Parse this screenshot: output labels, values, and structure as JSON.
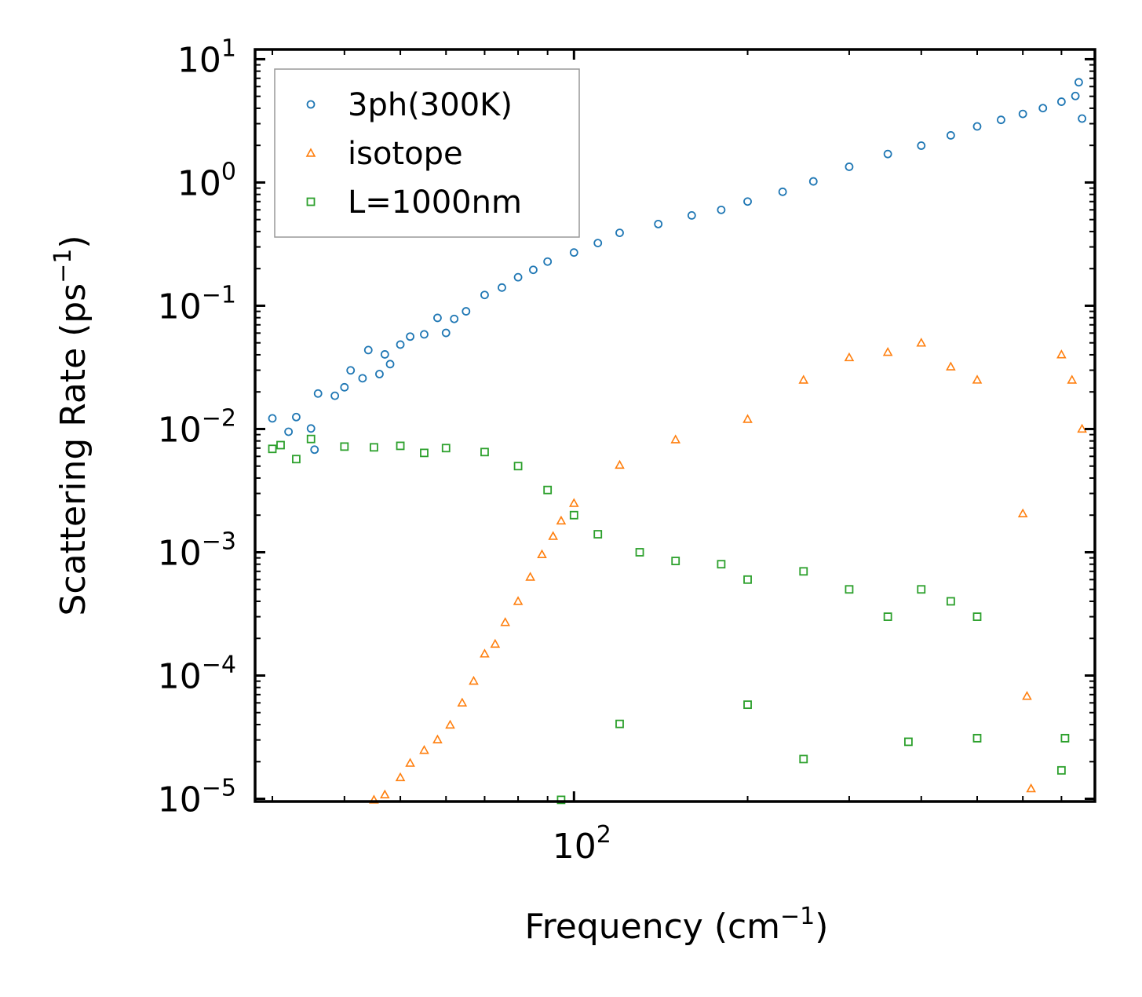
{
  "chart_data": {
    "type": "scatter",
    "x_scale": "log",
    "y_scale": "log",
    "xlim": [
      28,
      800
    ],
    "ylim": [
      9.5e-06,
      12
    ],
    "xlabel": "Frequency (cm",
    "xlabel_sup": "−1",
    "xlabel_end": ")",
    "ylabel": "Scattering Rate (ps",
    "ylabel_sup": "−1",
    "ylabel_end": ")",
    "x_ticks": [
      {
        "base": "10",
        "exp": "2",
        "value": 100
      }
    ],
    "y_ticks": [
      {
        "base": "10",
        "exp": "1",
        "value": 10
      },
      {
        "base": "10",
        "exp": "0",
        "value": 1
      },
      {
        "base": "10",
        "exp": "−1",
        "value": 0.1
      },
      {
        "base": "10",
        "exp": "−2",
        "value": 0.01
      },
      {
        "base": "10",
        "exp": "−3",
        "value": 0.001
      },
      {
        "base": "10",
        "exp": "−4",
        "value": 0.0001
      },
      {
        "base": "10",
        "exp": "−5",
        "value": 1e-05
      }
    ],
    "legend_position": "top-left",
    "series": [
      {
        "name": "3ph(300K)",
        "marker": "circle",
        "color": "#1f77b4",
        "points": [
          [
            30,
            0.0122
          ],
          [
            32,
            0.0095
          ],
          [
            33,
            0.0125
          ],
          [
            35,
            0.0101
          ],
          [
            35.5,
            0.0068
          ],
          [
            36,
            0.0194
          ],
          [
            38.5,
            0.0186
          ],
          [
            40,
            0.0218
          ],
          [
            41,
            0.0299
          ],
          [
            43,
            0.0258
          ],
          [
            44,
            0.0437
          ],
          [
            46,
            0.0279
          ],
          [
            47,
            0.0403
          ],
          [
            48,
            0.0336
          ],
          [
            50,
            0.0484
          ],
          [
            52,
            0.0562
          ],
          [
            55,
            0.0586
          ],
          [
            58,
            0.0797
          ],
          [
            60,
            0.0602
          ],
          [
            62,
            0.0782
          ],
          [
            65,
            0.0901
          ],
          [
            70,
            0.1223
          ],
          [
            75,
            0.1404
          ],
          [
            80,
            0.1703
          ],
          [
            85,
            0.1955
          ],
          [
            90,
            0.2281
          ],
          [
            100,
            0.2702
          ],
          [
            110,
            0.3225
          ],
          [
            120,
            0.3903
          ],
          [
            140,
            0.4601
          ],
          [
            160,
            0.5405
          ],
          [
            180,
            0.5993
          ],
          [
            200,
            0.7004
          ],
          [
            230,
            0.8401
          ],
          [
            260,
            1.0203
          ],
          [
            300,
            1.3406
          ],
          [
            350,
            1.7023
          ],
          [
            400,
            1.9902
          ],
          [
            450,
            2.4108
          ],
          [
            500,
            2.8504
          ],
          [
            550,
            3.2201
          ],
          [
            600,
            3.6003
          ],
          [
            650,
            4.0106
          ],
          [
            700,
            4.5205
          ],
          [
            740,
            5.0302
          ],
          [
            750,
            6.5001
          ],
          [
            760,
            3.3002
          ]
        ]
      },
      {
        "name": "isotope",
        "marker": "triangle",
        "color": "#ff7f0e",
        "points": [
          [
            45,
            9.8e-06
          ],
          [
            47,
            1.08e-05
          ],
          [
            50,
            1.49e-05
          ],
          [
            52,
            1.95e-05
          ],
          [
            55,
            2.48e-05
          ],
          [
            58,
            3.02e-05
          ],
          [
            61,
            3.98e-05
          ],
          [
            64,
            6.01e-05
          ],
          [
            67,
            9.03e-05
          ],
          [
            70,
            0.0001501
          ],
          [
            73,
            0.0001802
          ],
          [
            76,
            0.0002702
          ],
          [
            80,
            0.0004004
          ],
          [
            84,
            0.0006303
          ],
          [
            88,
            0.0009601
          ],
          [
            92,
            0.0013502
          ],
          [
            95,
            0.0018001
          ],
          [
            100,
            0.0025004
          ],
          [
            120,
            0.0051003
          ],
          [
            150,
            0.0082004
          ],
          [
            200,
            0.0120105
          ],
          [
            250,
            0.0250201
          ],
          [
            300,
            0.0380102
          ],
          [
            350,
            0.0420303
          ],
          [
            400,
            0.0500104
          ],
          [
            450,
            0.0320205
          ],
          [
            500,
            0.0250302
          ],
          [
            600,
            0.0020601
          ],
          [
            610,
            6.81e-05
          ],
          [
            620,
            1.21e-05
          ],
          [
            700,
            0.0401002
          ],
          [
            730,
            0.0250104
          ],
          [
            760,
            0.0100203
          ]
        ]
      },
      {
        "name": "L=1000nm",
        "marker": "square",
        "color": "#2ca02c",
        "points": [
          [
            30,
            0.0069
          ],
          [
            31,
            0.0074
          ],
          [
            33,
            0.0057
          ],
          [
            35,
            0.0083
          ],
          [
            40,
            0.0072
          ],
          [
            45,
            0.0071
          ],
          [
            50,
            0.0073
          ],
          [
            55,
            0.0064
          ],
          [
            60,
            0.007
          ],
          [
            70,
            0.0065
          ],
          [
            80,
            0.005
          ],
          [
            90,
            0.0032
          ],
          [
            100,
            0.002
          ],
          [
            110,
            0.0014
          ],
          [
            130,
            0.001
          ],
          [
            150,
            0.00085
          ],
          [
            180,
            0.0008
          ],
          [
            200,
            0.0006
          ],
          [
            250,
            0.0007
          ],
          [
            300,
            0.0005
          ],
          [
            350,
            0.0003
          ],
          [
            400,
            0.0005
          ],
          [
            450,
            0.0004
          ],
          [
            500,
            0.0003
          ],
          [
            95,
            9.8e-06
          ],
          [
            120,
            4.05e-05
          ],
          [
            200,
            5.8e-05
          ],
          [
            250,
            2.1e-05
          ],
          [
            380,
            2.9e-05
          ],
          [
            500,
            3.1e-05
          ],
          [
            700,
            1.7e-05
          ],
          [
            710,
            3.1e-05
          ]
        ]
      }
    ]
  }
}
